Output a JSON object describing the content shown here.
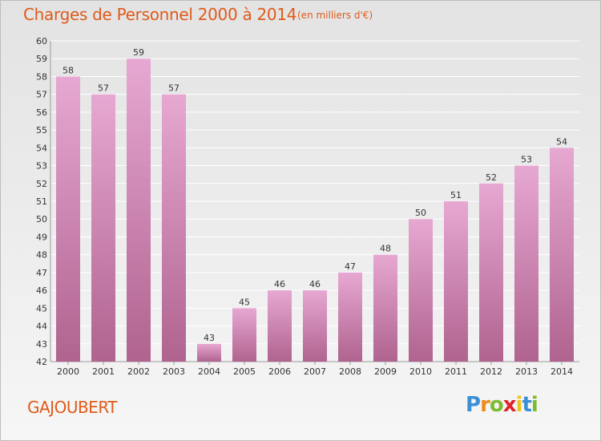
{
  "header": {
    "title": "Charges de Personnel 2000 à 2014",
    "subtitle": "(en milliers d'€)"
  },
  "footer": {
    "commune": "GAJOUBERT",
    "logo_letters": [
      "P",
      "r",
      "o",
      "x",
      "i",
      "t",
      "i"
    ],
    "logo_colors": [
      "#3a8fd6",
      "#f08a1c",
      "#7dbb2e",
      "#e0222a",
      "#f0c21c",
      "#3a8fd6",
      "#7dbb2e"
    ]
  },
  "colors": {
    "bar_top": "#e6a8d2",
    "bar_bottom": "#b0638f",
    "text": "#333333",
    "grid": "#ffffff"
  },
  "chart_data": {
    "type": "bar",
    "categories": [
      "2000",
      "2001",
      "2002",
      "2003",
      "2004",
      "2005",
      "2006",
      "2007",
      "2008",
      "2009",
      "2010",
      "2011",
      "2012",
      "2013",
      "2014"
    ],
    "values": [
      58,
      57,
      59,
      57,
      43,
      45,
      46,
      46,
      47,
      48,
      50,
      51,
      52,
      53,
      54
    ],
    "ylim": [
      42,
      60
    ],
    "yticks": [
      42,
      43,
      44,
      45,
      46,
      47,
      48,
      49,
      50,
      51,
      52,
      53,
      54,
      55,
      56,
      57,
      58,
      59,
      60
    ],
    "grid": true
  }
}
